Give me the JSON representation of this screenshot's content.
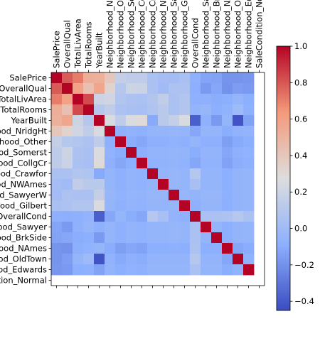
{
  "chart_data": {
    "type": "heatmap",
    "title": "",
    "xlabel": "",
    "ylabel": "",
    "colormap": "coolwarm",
    "grid": false,
    "colorbar": {
      "position": "right",
      "range": [
        -0.45,
        1.0
      ],
      "ticks": [
        1.0,
        0.8,
        0.6,
        0.4,
        0.2,
        0.0,
        -0.2,
        -0.4
      ],
      "tick_labels": [
        "1.0",
        "0.8",
        "0.6",
        "0.4",
        "0.2",
        "0.0",
        "−0.2",
        "−0.4"
      ]
    },
    "x_labels": [
      "SalePrice",
      "OverallQual",
      "TotalLivArea",
      "TotalRooms",
      "YearBuilt",
      "Neighborhood_NridgHt",
      "Neighborhood_Other",
      "Neighborhood_Somerst",
      "Neighborhood_CollgCr",
      "Neighborhood_Crawfor",
      "Neighborhood_NWAmes",
      "Neighborhood_SawyerW",
      "Neighborhood_Gilbert",
      "OverallCond",
      "Neighborhood_Sawyer",
      "Neighborhood_BrkSide",
      "Neighborhood_NAmes",
      "Neighborhood_OldTown",
      "Neighborhood_Edwards",
      "SaleCondition_Normal"
    ],
    "y_labels": [
      "SalePrice",
      "OverallQual",
      "TotalLivArea",
      "TotalRooms",
      "YearBuilt",
      "Neighborhood_NridgHt",
      "Neighborhood_Other",
      "Neighborhood_Somerst",
      "Neighborhood_CollgCr",
      "Neighborhood_Crawfor",
      "Neighborhood_NWAmes",
      "Neighborhood_SawyerW",
      "Neighborhood_Gilbert",
      "OverallCond",
      "Neighborhood_Sawyer",
      "Neighborhood_BrkSide",
      "Neighborhood_NAmes",
      "Neighborhood_OldTown",
      "Neighborhood_Edwards",
      "SaleCondition_Normal"
    ],
    "values": [
      [
        1.0,
        0.79,
        0.71,
        0.53,
        0.52,
        0.4,
        0.16,
        0.14,
        0.14,
        0.05,
        0.02,
        0.01,
        0.04,
        -0.08,
        -0.13,
        -0.14,
        -0.19,
        -0.19,
        -0.18,
        null
      ],
      [
        0.79,
        1.0,
        0.59,
        0.43,
        0.57,
        0.33,
        0.1,
        0.2,
        0.19,
        0.05,
        0.0,
        0.06,
        0.06,
        -0.09,
        -0.17,
        -0.12,
        -0.2,
        -0.16,
        -0.17,
        null
      ],
      [
        0.71,
        0.59,
        1.0,
        0.83,
        0.2,
        0.21,
        0.08,
        0.06,
        0.05,
        0.08,
        0.15,
        0.05,
        0.08,
        -0.08,
        -0.08,
        -0.1,
        -0.09,
        -0.05,
        -0.09,
        null
      ],
      [
        0.53,
        0.43,
        0.83,
        1.0,
        0.1,
        0.15,
        0.06,
        0.04,
        0.03,
        0.07,
        0.11,
        0.05,
        0.08,
        -0.06,
        -0.04,
        -0.09,
        -0.07,
        -0.01,
        -0.08,
        null
      ],
      [
        0.52,
        0.57,
        0.2,
        0.1,
        1.0,
        0.25,
        0.14,
        0.26,
        0.29,
        -0.11,
        0.11,
        0.16,
        0.25,
        -0.38,
        -0.08,
        -0.17,
        -0.05,
        -0.42,
        -0.14,
        null
      ],
      [
        0.4,
        0.33,
        0.21,
        0.15,
        0.25,
        1.0,
        -0.08,
        -0.07,
        -0.08,
        -0.05,
        -0.05,
        -0.04,
        -0.05,
        -0.12,
        -0.05,
        -0.05,
        -0.1,
        -0.07,
        -0.06,
        null
      ],
      [
        0.16,
        0.1,
        0.08,
        0.06,
        0.14,
        -0.08,
        1.0,
        -0.1,
        -0.12,
        -0.08,
        -0.08,
        -0.07,
        -0.08,
        -0.05,
        -0.08,
        -0.08,
        -0.15,
        -0.11,
        -0.09,
        null
      ],
      [
        0.14,
        0.2,
        0.06,
        0.04,
        0.26,
        -0.07,
        -0.1,
        1.0,
        -0.09,
        -0.06,
        -0.06,
        -0.05,
        -0.06,
        -0.1,
        -0.06,
        -0.06,
        -0.12,
        -0.08,
        -0.07,
        null
      ],
      [
        0.14,
        0.19,
        0.05,
        0.03,
        0.29,
        -0.08,
        -0.12,
        -0.09,
        1.0,
        -0.07,
        -0.07,
        -0.06,
        -0.07,
        -0.12,
        -0.07,
        -0.07,
        -0.14,
        -0.1,
        -0.08,
        null
      ],
      [
        0.05,
        0.05,
        0.08,
        0.07,
        -0.11,
        -0.05,
        -0.08,
        -0.06,
        -0.07,
        1.0,
        -0.05,
        -0.04,
        -0.05,
        0.1,
        -0.05,
        -0.05,
        -0.09,
        -0.06,
        -0.05,
        null
      ],
      [
        0.02,
        0.0,
        0.15,
        0.11,
        0.11,
        -0.05,
        -0.08,
        -0.06,
        -0.07,
        -0.05,
        1.0,
        -0.04,
        -0.05,
        0.03,
        -0.05,
        -0.05,
        -0.09,
        -0.06,
        -0.05,
        null
      ],
      [
        0.01,
        0.06,
        0.05,
        0.05,
        0.16,
        -0.04,
        -0.07,
        -0.05,
        -0.06,
        -0.04,
        -0.04,
        1.0,
        -0.04,
        -0.06,
        -0.04,
        -0.04,
        -0.08,
        -0.06,
        -0.05,
        null
      ],
      [
        0.04,
        0.06,
        0.08,
        0.08,
        0.25,
        -0.05,
        -0.08,
        -0.06,
        -0.07,
        -0.05,
        -0.05,
        -0.04,
        1.0,
        -0.08,
        -0.05,
        -0.05,
        -0.09,
        -0.06,
        -0.05,
        null
      ],
      [
        -0.08,
        -0.09,
        -0.08,
        -0.06,
        -0.38,
        -0.12,
        -0.05,
        -0.1,
        -0.12,
        0.1,
        0.03,
        -0.06,
        -0.08,
        1.0,
        0.05,
        0.05,
        0.06,
        0.1,
        0.05,
        null
      ],
      [
        -0.13,
        -0.17,
        -0.08,
        -0.04,
        -0.08,
        -0.05,
        -0.08,
        -0.06,
        -0.07,
        -0.05,
        -0.05,
        -0.04,
        -0.05,
        0.05,
        1.0,
        -0.05,
        -0.09,
        -0.06,
        -0.05,
        null
      ],
      [
        -0.14,
        -0.12,
        -0.1,
        -0.09,
        -0.17,
        -0.05,
        -0.08,
        -0.06,
        -0.07,
        -0.05,
        -0.05,
        -0.04,
        -0.05,
        0.05,
        -0.05,
        1.0,
        -0.09,
        -0.06,
        -0.05,
        null
      ],
      [
        -0.19,
        -0.2,
        -0.09,
        -0.07,
        -0.05,
        -0.1,
        -0.15,
        -0.12,
        -0.14,
        -0.09,
        -0.09,
        -0.08,
        -0.09,
        0.06,
        -0.09,
        -0.09,
        1.0,
        -0.12,
        -0.1,
        null
      ],
      [
        -0.19,
        -0.16,
        -0.05,
        -0.01,
        -0.42,
        -0.07,
        -0.11,
        -0.08,
        -0.1,
        -0.06,
        -0.06,
        -0.06,
        -0.06,
        0.1,
        -0.06,
        -0.06,
        -0.12,
        1.0,
        -0.07,
        null
      ],
      [
        -0.18,
        -0.17,
        -0.09,
        -0.08,
        -0.14,
        -0.06,
        -0.09,
        -0.07,
        -0.08,
        -0.05,
        -0.05,
        -0.05,
        -0.05,
        0.05,
        -0.05,
        -0.05,
        -0.1,
        -0.07,
        1.0,
        null
      ],
      [
        null,
        null,
        null,
        null,
        null,
        null,
        null,
        null,
        null,
        null,
        null,
        null,
        null,
        null,
        null,
        null,
        null,
        null,
        null,
        null
      ]
    ]
  }
}
